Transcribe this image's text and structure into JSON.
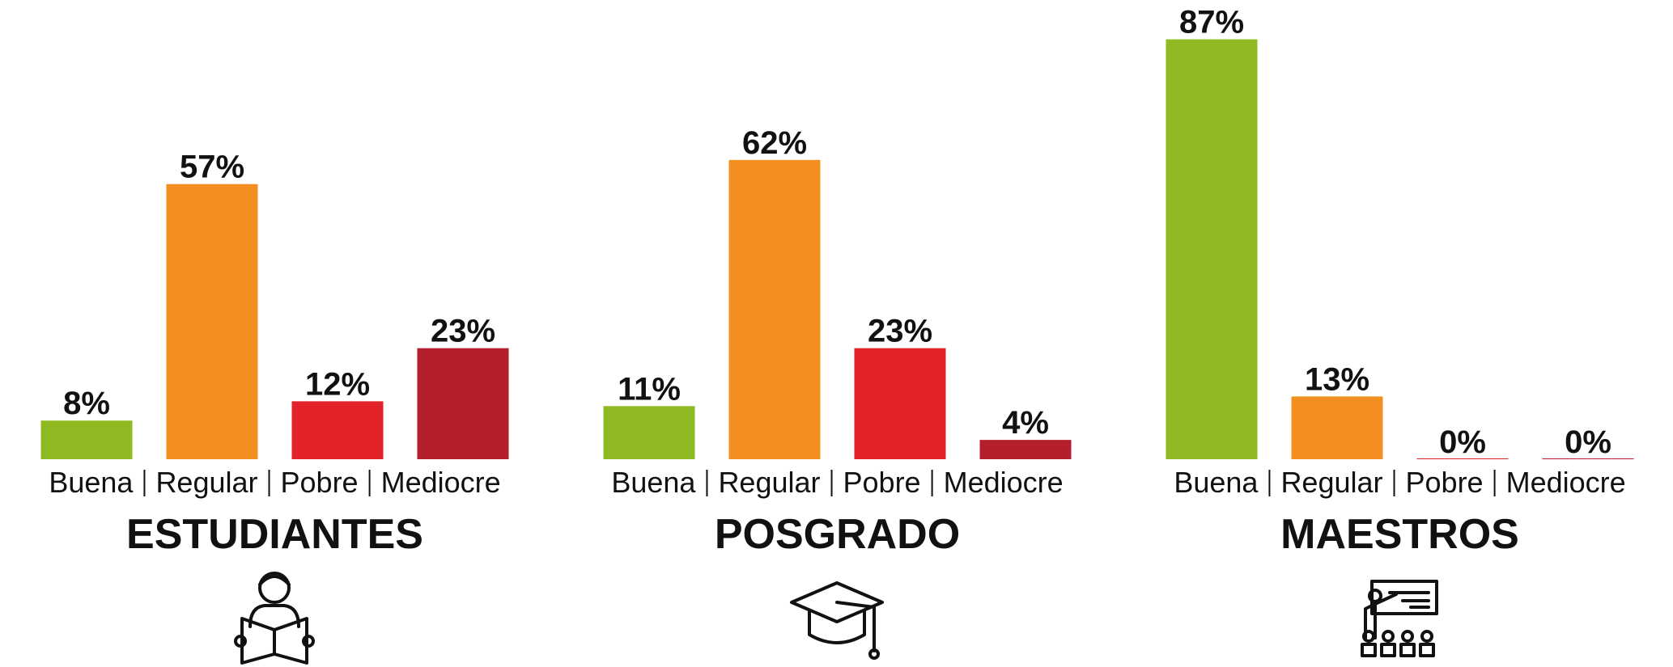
{
  "chart_data": [
    {
      "type": "bar",
      "title": "ESTUDIANTES",
      "categories": [
        "Buena",
        "Regular",
        "Pobre",
        "Mediocre"
      ],
      "values": [
        8,
        57,
        12,
        23
      ],
      "value_labels": [
        "8%",
        "57%",
        "12%",
        "23%"
      ],
      "colors": [
        "#8fba21",
        "#f18e1f",
        "#e3232a",
        "#b41f2b"
      ]
    },
    {
      "type": "bar",
      "title": "POSGRADO",
      "categories": [
        "Buena",
        "Regular",
        "Pobre",
        "Mediocre"
      ],
      "values": [
        11,
        62,
        23,
        4
      ],
      "value_labels": [
        "11%",
        "62%",
        "23%",
        "4%"
      ],
      "colors": [
        "#8fba21",
        "#f18e1f",
        "#e3232a",
        "#b41f2b"
      ]
    },
    {
      "type": "bar",
      "title": "MAESTROS",
      "categories": [
        "Buena",
        "Regular",
        "Pobre",
        "Mediocre"
      ],
      "values": [
        87,
        13,
        0,
        0
      ],
      "value_labels": [
        "87%",
        "13%",
        "0%",
        "0%"
      ],
      "colors": [
        "#8fba21",
        "#f18e1f",
        "#e3232a",
        "#b41f2b"
      ]
    }
  ]
}
